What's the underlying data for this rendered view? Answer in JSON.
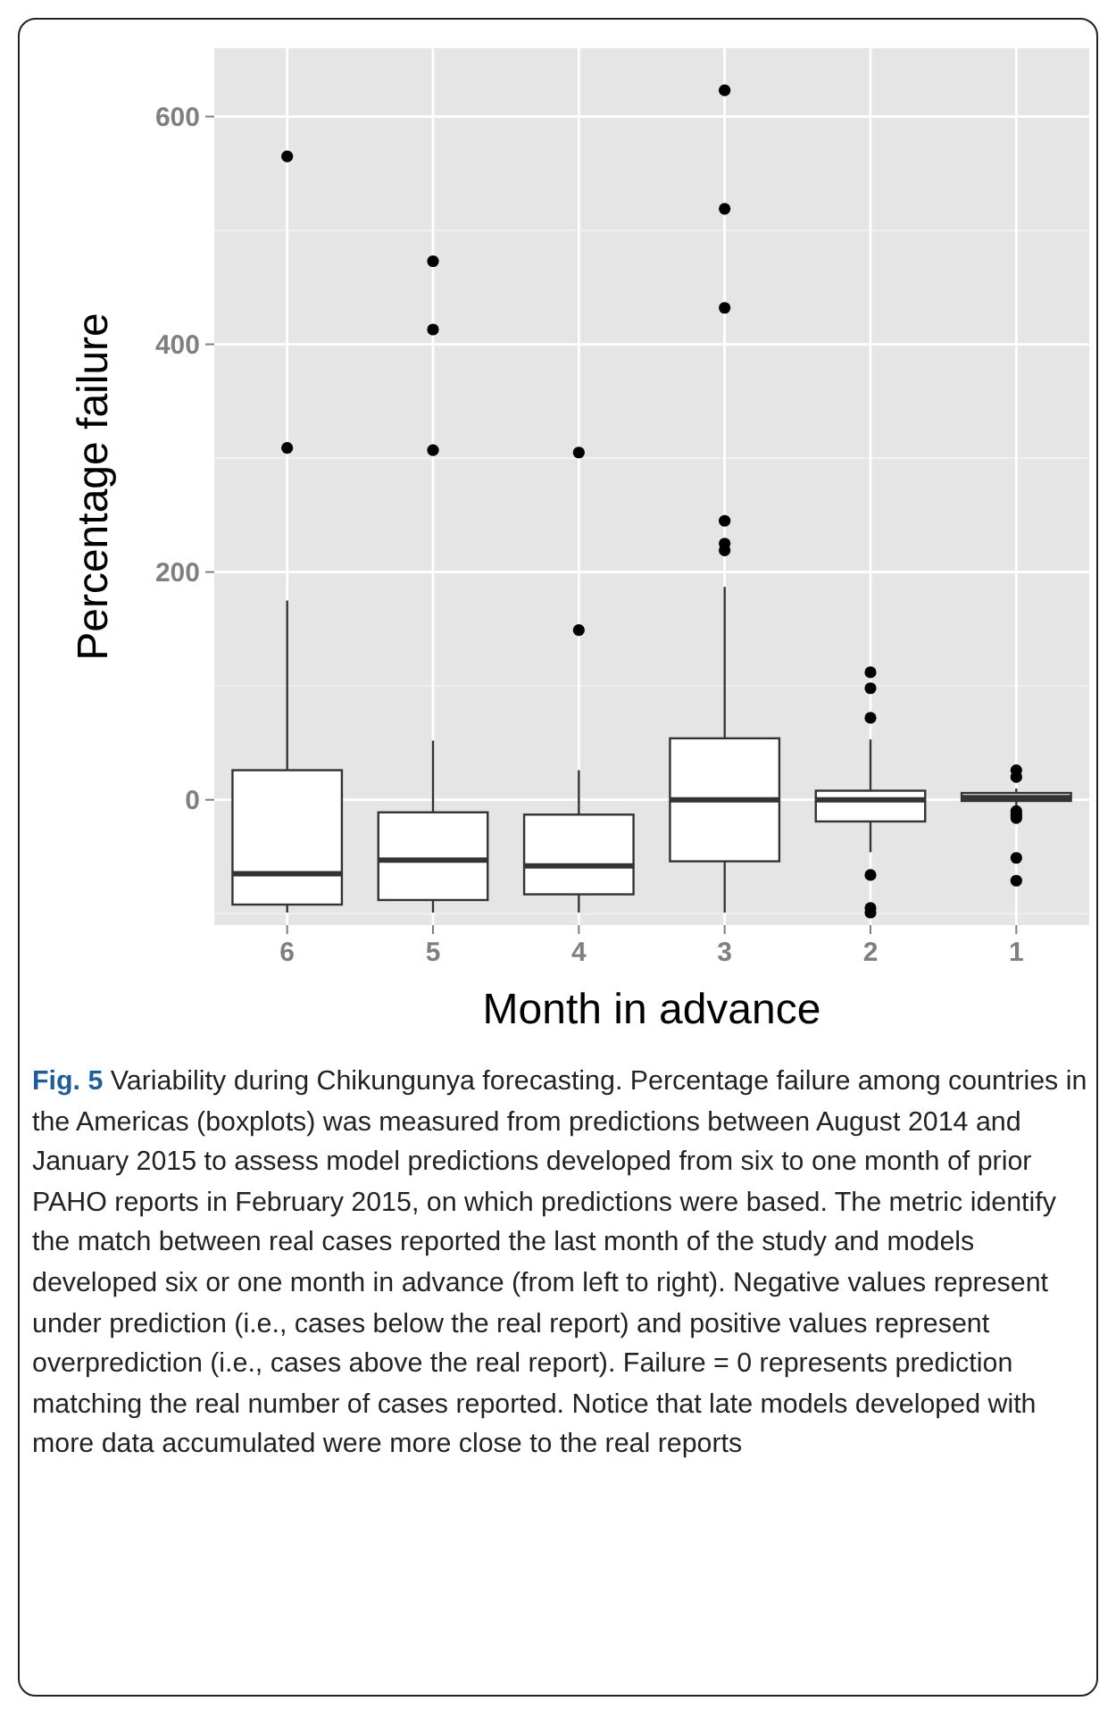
{
  "chart_data": {
    "type": "box",
    "xlabel": "Month in advance",
    "ylabel": "Percentage failure",
    "categories": [
      "6",
      "5",
      "4",
      "3",
      "2",
      "1"
    ],
    "boxes": [
      {
        "low": -99,
        "q1": -92,
        "median": -65,
        "q3": 26,
        "high": 175,
        "outliers": [
          309,
          565
        ]
      },
      {
        "low": -99,
        "q1": -88,
        "median": -53,
        "q3": -11,
        "high": 52,
        "outliers": [
          307,
          413,
          473
        ]
      },
      {
        "low": -99,
        "q1": -83,
        "median": -58,
        "q3": -13,
        "high": 26,
        "outliers": [
          149,
          305
        ]
      },
      {
        "low": -99,
        "q1": -54,
        "median": 0,
        "q3": 54,
        "high": 187,
        "outliers": [
          219,
          225,
          245,
          432,
          519,
          623
        ]
      },
      {
        "low": -46,
        "q1": -19,
        "median": 0,
        "q3": 8,
        "high": 53,
        "outliers": [
          72,
          98,
          112,
          -66,
          -95,
          -99
        ]
      },
      {
        "low": -7,
        "q1": -1,
        "median": 2,
        "q3": 6,
        "high": 10,
        "outliers": [
          26,
          20,
          -10,
          -13,
          -16,
          -51,
          -71
        ]
      }
    ],
    "ylim": [
      -110,
      660
    ],
    "yticks": [
      0,
      200,
      400,
      600
    ],
    "grid": true,
    "annotations": [
      "Fig. 5",
      "Variability during Chikungunya forecasting. Percentage failure among countries in the Americas (boxplots) was measured from predictions between August 2014 and January 2015 to assess model predictions developed from six to one month of prior PAHO reports in February 2015, on which predictions were based. The metric identify the match between real cases reported the last month of the study and models developed six or one month in advance (from left to right). Negative values represent under prediction (i.e., cases below the real report) and positive values represent overprediction (i.e., cases above the real report). Failure = 0 represents prediction matching the real number of cases reported. Notice that late models developed with more data accumulated were more close to the real reports"
    ]
  }
}
